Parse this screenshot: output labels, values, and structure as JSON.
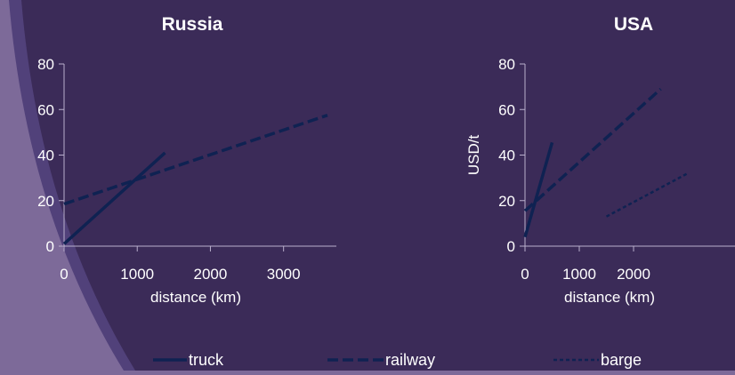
{
  "colors": {
    "background": "#7d6a99",
    "panel": "#3b2b58",
    "panel_edge": "#51417a",
    "text": "#ffffff",
    "axis": "#b9afcc",
    "series": "#0f2252"
  },
  "legend": {
    "placement": "bottom",
    "items": [
      {
        "label": "truck",
        "style": "solid"
      },
      {
        "label": "railway",
        "style": "dashed"
      },
      {
        "label": "barge",
        "style": "dotted"
      }
    ]
  },
  "chart_data": [
    {
      "type": "line",
      "title": "Russia",
      "xlabel": "distance (km)",
      "ylabel": "",
      "xlim": [
        0,
        3600
      ],
      "ylim": [
        0,
        80
      ],
      "xticks": [
        0,
        1000,
        2000,
        3000
      ],
      "yticks": [
        0,
        20,
        40,
        60,
        80
      ],
      "grid": false,
      "series": [
        {
          "name": "truck",
          "style": "solid",
          "x": [
            0,
            1380
          ],
          "y": [
            1,
            41
          ]
        },
        {
          "name": "railway",
          "style": "dashed",
          "x": [
            0,
            3600
          ],
          "y": [
            18.5,
            57.5
          ]
        }
      ]
    },
    {
      "type": "line",
      "title": "USA",
      "xlabel": "distance (km)",
      "ylabel": "USD/t",
      "xlim": [
        0,
        4000
      ],
      "ylim": [
        0,
        80
      ],
      "xticks": [
        0,
        1000,
        2000
      ],
      "yticks": [
        0,
        20,
        40,
        60,
        80
      ],
      "grid": false,
      "series": [
        {
          "name": "truck",
          "style": "solid",
          "x": [
            0,
            500
          ],
          "y": [
            4,
            45.5
          ]
        },
        {
          "name": "railway",
          "style": "dashed",
          "x": [
            0,
            2500
          ],
          "y": [
            15.5,
            69
          ]
        },
        {
          "name": "barge",
          "style": "dotted",
          "x": [
            1500,
            3000
          ],
          "y": [
            13,
            32
          ]
        }
      ]
    }
  ]
}
